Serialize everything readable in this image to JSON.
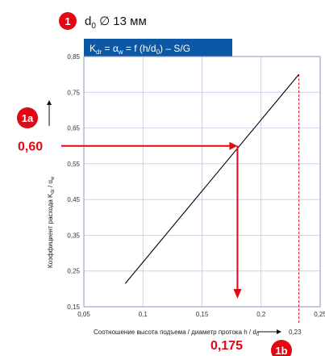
{
  "header": {
    "badge": "1",
    "title_symbol": "d",
    "title_subscript": "0",
    "title_rest": " ∅ 13 мм"
  },
  "chart_data": {
    "type": "line",
    "title": "Kdr = αw = f (h/d0) – S/G",
    "title_parts": {
      "k": "K",
      "k_sub": "dr",
      "eq1": " = α",
      "a_sub": "w",
      "eq2": " = f (h/d",
      "d_sub": "0",
      "eq3": ") – S/G"
    },
    "xlabel": "Соотношение высота подъема / диаметр протока h / d0",
    "xlabel_text": "Соотношение высота подъема / диаметр протока h / d",
    "xlabel_sub": "0",
    "ylabel": "Коэффициент расхода Kdr / αw",
    "ylabel_text": "Коэффициент расхода K",
    "ylabel_sub1": "dr",
    "ylabel_mid": " / α",
    "ylabel_sub2": "w",
    "xlim": [
      0.05,
      0.25
    ],
    "ylim": [
      0.15,
      0.85
    ],
    "xticks": [
      0.05,
      0.1,
      0.15,
      0.2,
      0.25
    ],
    "xtick_labels": [
      "0,05",
      "0,1",
      "0,15",
      "0,2",
      "0,25"
    ],
    "yticks": [
      0.15,
      0.25,
      0.35,
      0.45,
      0.55,
      0.65,
      0.75,
      0.85
    ],
    "ytick_labels": [
      "0,15",
      "0,25",
      "0,35",
      "0,45",
      "0,55",
      "0,65",
      "0,75",
      "0,85"
    ],
    "grid": true,
    "series": [
      {
        "x": [
          0.085,
          0.232
        ],
        "y": [
          0.215,
          0.8
        ]
      }
    ],
    "annotations": {
      "marker_1a": "1a",
      "value_y": "0,60",
      "value_y_num": 0.6,
      "value_x": "0,175",
      "value_x_num": 0.18,
      "marker_1b": "1b",
      "limit_x_label": "0,23",
      "limit_x_num": 0.232,
      "limit_y_num": 0.8
    },
    "colors": {
      "accent": "#e30613",
      "title_bar": "#0c58a6",
      "grid": "#b9c3e0",
      "curve": "#000000"
    }
  }
}
